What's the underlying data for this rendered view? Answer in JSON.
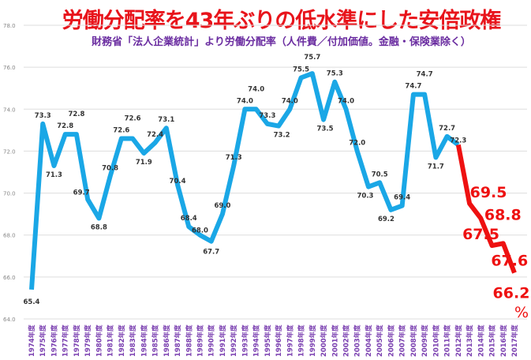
{
  "chart_data": {
    "type": "line",
    "title": "労働分配率を43年ぶりの低水準にした安倍政権",
    "subtitle": "財務省「法人企業統計」より労働分配率（人件費／付加価値。金融・保険業除く）",
    "xlabel": "",
    "ylabel": "",
    "ylim": [
      64.0,
      78.0
    ],
    "yticks": [
      "64.0",
      "66.0",
      "68.0",
      "70.0",
      "72.0",
      "74.0",
      "76.0",
      "78.0"
    ],
    "grid": true,
    "unit_label": "%",
    "categories": [
      "1974年度",
      "1975年度",
      "1976年度",
      "1977年度",
      "1978年度",
      "1979年度",
      "1980年度",
      "1981年度",
      "1982年度",
      "1983年度",
      "1984年度",
      "1985年度",
      "1986年度",
      "1987年度",
      "1988年度",
      "1989年度",
      "1990年度",
      "1991年度",
      "1992年度",
      "1993年度",
      "1994年度",
      "1995年度",
      "1996年度",
      "1997年度",
      "1998年度",
      "1999年度",
      "2000年度",
      "2001年度",
      "2002年度",
      "2003年度",
      "2004年度",
      "2005年度",
      "2006年度",
      "2007年度",
      "2008年度",
      "2009年度",
      "2010年度",
      "2011年度",
      "2012年度",
      "2013年度",
      "2014年度",
      "2015年度",
      "2016年度",
      "2017年度"
    ],
    "values": [
      65.4,
      73.3,
      71.3,
      72.8,
      72.8,
      69.7,
      68.8,
      70.8,
      72.6,
      72.6,
      71.9,
      72.4,
      73.1,
      70.4,
      68.4,
      68.0,
      67.7,
      69.0,
      71.3,
      74.0,
      74.0,
      73.3,
      73.2,
      74.0,
      75.5,
      75.7,
      73.5,
      75.3,
      74.0,
      72.0,
      70.3,
      70.5,
      69.2,
      69.4,
      74.7,
      74.7,
      71.7,
      72.7,
      72.3,
      69.5,
      68.8,
      67.5,
      67.6,
      66.2
    ],
    "highlight_from_index": 38,
    "colors": {
      "main": "#1aa7e6",
      "highlight": "#ee1111",
      "title": "#e8141b",
      "subtitle": "#6a2ca0",
      "xlabels": "#7a3fb0",
      "grid": "#dddddd"
    }
  }
}
